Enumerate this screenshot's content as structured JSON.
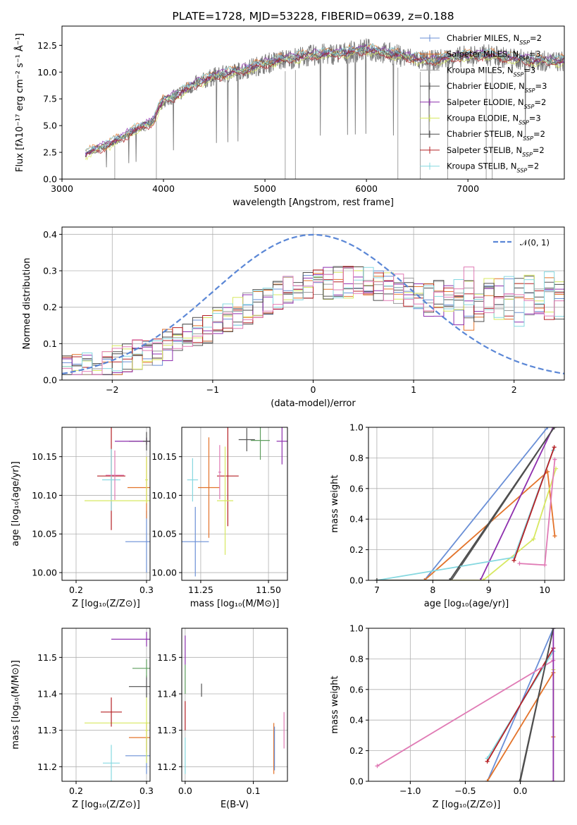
{
  "chart_data": [
    {
      "id": "spectrum",
      "type": "line",
      "title": "PLATE=1728, MJD=53228, FIBERID=0639, z=0.188",
      "xlabel": "wavelength [Angstrom, rest frame]",
      "ylabel": "Flux [fλ10⁻¹⁷ erg cm⁻² s⁻¹ Å⁻¹]",
      "xlim": [
        3000,
        7950
      ],
      "ylim": [
        0,
        14.3
      ],
      "xticks": [
        3000,
        4000,
        5000,
        6000,
        7000
      ],
      "yticks": [
        "0.0",
        "2.5",
        "5.0",
        "7.5",
        "10.0",
        "12.5"
      ],
      "grid": false,
      "legend_position": "top-right",
      "observed_anchors": {
        "x": [
          3230,
          3300,
          3400,
          3500,
          3600,
          3700,
          3800,
          3900,
          3950,
          4000,
          4100,
          4300,
          4500,
          4800,
          5000,
          5200,
          5500,
          5800,
          6000,
          6300,
          6600,
          6800,
          7000,
          7200,
          7400,
          7600,
          7800
        ],
        "y": [
          2.3,
          2.6,
          3.0,
          3.4,
          3.9,
          4.5,
          4.9,
          5.4,
          6.5,
          7.3,
          7.7,
          8.8,
          9.6,
          10.2,
          10.8,
          11.2,
          11.6,
          11.8,
          12.1,
          11.6,
          11.0,
          11.3,
          11.5,
          11.6,
          11.3,
          11.1,
          11.0
        ]
      },
      "model_offsets": [
        0.1,
        0.3,
        -0.1,
        0.0,
        0.2,
        -0.2,
        0.05,
        -0.15,
        0.25
      ],
      "series": [
        {
          "name": "Chabrier MILES, N_SSP=2",
          "base": "Chabrier MILES, N",
          "sub": "SSP",
          "tail": "=2",
          "color": "#6a8fd6",
          "marker": "|"
        },
        {
          "name": "Salpeter MILES, N_SSP=3",
          "base": "Salpeter MILES, N",
          "sub": "SSP",
          "tail": "=3",
          "color": "#e3732a",
          "marker": "|"
        },
        {
          "name": "Kroupa MILES, N_SSP=3",
          "base": "Kroupa MILES, N",
          "sub": "SSP",
          "tail": "=3",
          "color": "#9a9a9a",
          "marker": "|"
        },
        {
          "name": "Chabrier ELODIE, N_SSP=3",
          "base": "Chabrier ELODIE, N",
          "sub": "SSP",
          "tail": "=3",
          "color": "#555555",
          "marker": "|"
        },
        {
          "name": "Salpeter ELODIE, N_SSP=2",
          "base": "Salpeter ELODIE, N",
          "sub": "SSP",
          "tail": "=2",
          "color": "#8e2fae",
          "marker": "|"
        },
        {
          "name": "Kroupa ELODIE, N_SSP=3",
          "base": "Kroupa ELODIE, N",
          "sub": "SSP",
          "tail": "=3",
          "color": "#d7e861",
          "marker": "|"
        },
        {
          "name": "Chabrier STELIB, N_SSP=2",
          "base": "Chabrier STELIB, N",
          "sub": "SSP",
          "tail": "=2",
          "color": "#4d4d4d",
          "marker": "|"
        },
        {
          "name": "Salpeter STELIB, N_SSP=2",
          "base": "Salpeter STELIB, N",
          "sub": "SSP",
          "tail": "=2",
          "color": "#b52025",
          "marker": "|"
        },
        {
          "name": "Kroupa STELIB, N_SSP=2",
          "base": "Kroupa STELIB, N",
          "sub": "SSP",
          "tail": "=2",
          "color": "#86d8e0",
          "marker": "|"
        }
      ]
    },
    {
      "id": "residuals",
      "type": "line",
      "xlabel": "(data-model)/error",
      "ylabel": "Normed distribution",
      "xlim": [
        -2.5,
        2.5
      ],
      "ylim": [
        0,
        0.42
      ],
      "xticks": [
        "−2",
        "−1",
        "0",
        "1",
        "2"
      ],
      "xtick_values": [
        -2,
        -1,
        0,
        1,
        2
      ],
      "yticks": [
        "0.0",
        "0.1",
        "0.2",
        "0.3",
        "0.4"
      ],
      "ytick_values": [
        0,
        0.1,
        0.2,
        0.3,
        0.4
      ],
      "grid": true,
      "reference_label": "𝒩(0, 1)",
      "reference_color": "#5b87d6",
      "bin_width": 0.1,
      "series_colors": [
        "#6a8fd6",
        "#e3732a",
        "#9a9a9a",
        "#555555",
        "#8e2fae",
        "#d7e861",
        "#4d4d4d",
        "#b52025",
        "#86d8e0",
        "#e07bb5"
      ]
    },
    {
      "id": "age-Z",
      "type": "scatter",
      "xlabel": "Z [log₁₀(Z/Z⊙)]",
      "ylabel": "age  [log₁₀(age/yr)]",
      "xlim": [
        0.18,
        0.305
      ],
      "ylim": [
        9.99,
        10.188
      ],
      "xticks": [
        "0.2",
        "0.3"
      ],
      "xtick_values": [
        0.2,
        0.3
      ],
      "yticks": [
        "10.00",
        "10.05",
        "10.10",
        "10.15"
      ],
      "ytick_values": [
        10.0,
        10.05,
        10.1,
        10.15
      ],
      "points": [
        {
          "x": 0.3,
          "y": 10.04,
          "ex": 0.03,
          "ey": 0.04,
          "color": "#6a8fd6"
        },
        {
          "x": 0.3,
          "y": 10.11,
          "ex": 0.027,
          "ey": 0.04,
          "color": "#e3732a"
        },
        {
          "x": 0.3,
          "y": 10.17,
          "ex": 0.025,
          "ey": 0.005,
          "color": "#555555"
        },
        {
          "x": 0.3,
          "y": 10.17,
          "ex": 0.045,
          "ey": 0.004,
          "color": "#8e2fae"
        },
        {
          "x": 0.3,
          "y": 10.17,
          "ex": 0.005,
          "ey": 0.012,
          "color": "#4d4d4d"
        },
        {
          "x": 0.3,
          "y": 10.12,
          "ex": 0.002,
          "ey": 0.03,
          "color": "#d7e861"
        },
        {
          "x": 0.25,
          "y": 10.125,
          "ex": 0.02,
          "ey": 0.07,
          "color": "#b52025"
        },
        {
          "x": 0.25,
          "y": 10.12,
          "ex": 0.013,
          "ey": 0.04,
          "color": "#86d8e0"
        },
        {
          "x": 0.255,
          "y": 10.126,
          "ex": 0.013,
          "ey": 0.032,
          "color": "#e07bb5"
        },
        {
          "x": 0.3,
          "y": 10.093,
          "ex": 0.088,
          "ey": 0.003,
          "color": "#d7e861"
        }
      ]
    },
    {
      "id": "age-mass",
      "type": "scatter",
      "xlabel": "mass [log₁₀(M/M⊙)]",
      "ylabel": "",
      "xlim": [
        11.18,
        11.57
      ],
      "ylim": [
        9.99,
        10.188
      ],
      "xticks": [
        "11.25",
        "11.50"
      ],
      "xtick_values": [
        11.25,
        11.5
      ],
      "yticks": [
        "10.00",
        "10.05",
        "10.10",
        "10.15"
      ],
      "ytick_values": [
        10.0,
        10.05,
        10.1,
        10.15
      ],
      "points": [
        {
          "x": 11.23,
          "y": 10.04,
          "ex": 0.05,
          "ey": 0.045,
          "color": "#6a8fd6"
        },
        {
          "x": 11.28,
          "y": 10.11,
          "ex": 0.04,
          "ey": 0.065,
          "color": "#e3732a"
        },
        {
          "x": 11.22,
          "y": 10.12,
          "ex": 0.02,
          "ey": 0.028,
          "color": "#86d8e0"
        },
        {
          "x": 11.35,
          "y": 10.125,
          "ex": 0.04,
          "ey": 0.065,
          "color": "#b52025"
        },
        {
          "x": 11.32,
          "y": 10.13,
          "ex": 0.005,
          "ey": 0.035,
          "color": "#e07bb5"
        },
        {
          "x": 11.34,
          "y": 10.093,
          "ex": 0.03,
          "ey": 0.07,
          "color": "#d7e861"
        },
        {
          "x": 11.42,
          "y": 10.172,
          "ex": 0.03,
          "ey": 0.015,
          "color": "#555555"
        },
        {
          "x": 11.47,
          "y": 10.171,
          "ex": 0.035,
          "ey": 0.025,
          "color": "#5e9e5e"
        },
        {
          "x": 11.55,
          "y": 10.17,
          "ex": 0.02,
          "ey": 0.03,
          "color": "#8e2fae"
        }
      ]
    },
    {
      "id": "weight-age",
      "type": "line",
      "xlabel": "age  [log₁₀(age/yr)]",
      "ylabel": "mass weight",
      "xlim": [
        6.85,
        10.35
      ],
      "ylim": [
        0,
        1
      ],
      "xticks": [
        "7",
        "8",
        "9",
        "10"
      ],
      "xtick_values": [
        7,
        8,
        9,
        10
      ],
      "yticks": [
        "0.0",
        "0.2",
        "0.4",
        "0.6",
        "0.8",
        "1.0"
      ],
      "ytick_values": [
        0,
        0.2,
        0.4,
        0.6,
        0.8,
        1.0
      ],
      "series": [
        {
          "color": "#6a8fd6",
          "x": [
            7.0,
            7.85,
            10.05
          ],
          "y": [
            0,
            0,
            1.0
          ]
        },
        {
          "color": "#e3732a",
          "x": [
            7.0,
            7.85,
            10.05,
            10.18
          ],
          "y": [
            0,
            0,
            0.71,
            0.29
          ]
        },
        {
          "color": "#555555",
          "x": [
            7.0,
            8.33,
            10.17
          ],
          "y": [
            0,
            0,
            1.0
          ]
        },
        {
          "color": "#8e2fae",
          "x": [
            7.0,
            8.85,
            10.15
          ],
          "y": [
            0,
            0,
            1.0
          ]
        },
        {
          "color": "#d7e861",
          "x": [
            7.0,
            8.9,
            9.8,
            10.2
          ],
          "y": [
            0,
            0,
            0.27,
            0.73
          ]
        },
        {
          "color": "#86d8e0",
          "x": [
            7.0,
            9.45,
            10.15
          ],
          "y": [
            0,
            0.15,
            0.85
          ]
        },
        {
          "color": "#b52025",
          "x": [
            9.45,
            10.17
          ],
          "y": [
            0.13,
            0.87
          ]
        },
        {
          "color": "#e07bb5",
          "x": [
            9.55,
            10.0,
            10.18
          ],
          "y": [
            0.11,
            0.1,
            0.79
          ]
        },
        {
          "color": "#4d4d4d",
          "x": [
            7.0,
            8.3,
            10.17
          ],
          "y": [
            0,
            0,
            1.0
          ]
        }
      ]
    },
    {
      "id": "mass-Z",
      "type": "scatter",
      "xlabel": "Z [log₁₀(Z/Z⊙)]",
      "ylabel": "mass [log₁₀(M/M⊙)]",
      "xlim": [
        0.18,
        0.305
      ],
      "ylim": [
        11.16,
        11.58
      ],
      "xticks": [
        "0.2",
        "0.3"
      ],
      "xtick_values": [
        0.2,
        0.3
      ],
      "yticks": [
        "11.2",
        "11.3",
        "11.4",
        "11.5"
      ],
      "ytick_values": [
        11.2,
        11.3,
        11.4,
        11.5
      ],
      "points": [
        {
          "x": 0.3,
          "y": 11.23,
          "ex": 0.03,
          "ey": 0.05,
          "color": "#6a8fd6"
        },
        {
          "x": 0.3,
          "y": 11.28,
          "ex": 0.025,
          "ey": 0.04,
          "color": "#e3732a"
        },
        {
          "x": 0.3,
          "y": 11.32,
          "ex": 0.088,
          "ey": 0.003,
          "color": "#d7e861"
        },
        {
          "x": 0.3,
          "y": 11.42,
          "ex": 0.025,
          "ey": 0.03,
          "color": "#4d4d4d"
        },
        {
          "x": 0.3,
          "y": 11.47,
          "ex": 0.02,
          "ey": 0.025,
          "color": "#5e9e5e"
        },
        {
          "x": 0.3,
          "y": 11.55,
          "ex": 0.05,
          "ey": 0.02,
          "color": "#8e2fae"
        },
        {
          "x": 0.25,
          "y": 11.35,
          "ex": 0.015,
          "ey": 0.04,
          "color": "#b52025"
        },
        {
          "x": 0.25,
          "y": 11.21,
          "ex": 0.012,
          "ey": 0.05,
          "color": "#86d8e0"
        },
        {
          "x": 0.3,
          "y": 11.3,
          "ex": 0.002,
          "ey": 0.09,
          "color": "#d7e861"
        }
      ]
    },
    {
      "id": "mass-EBV",
      "type": "scatter",
      "xlabel": "E(B-V)",
      "ylabel": "",
      "xlim": [
        -0.005,
        0.15
      ],
      "ylim": [
        11.16,
        11.58
      ],
      "xticks": [
        "0.0",
        "0.1"
      ],
      "xtick_values": [
        0.0,
        0.1
      ],
      "yticks": [
        "11.2",
        "11.3",
        "11.4",
        "11.5"
      ],
      "ytick_values": [
        11.2,
        11.3,
        11.4,
        11.5
      ],
      "points": [
        {
          "x": 0.0,
          "y": 11.52,
          "ex": 0.0,
          "ey": 0.04,
          "color": "#8e2fae"
        },
        {
          "x": 0.0,
          "y": 11.44,
          "ex": 0.0,
          "ey": 0.04,
          "color": "#5e9e5e"
        },
        {
          "x": 0.0,
          "y": 11.34,
          "ex": 0.0,
          "ey": 0.04,
          "color": "#b52025"
        },
        {
          "x": 0.0,
          "y": 11.23,
          "ex": 0.0,
          "ey": 0.05,
          "color": "#86d8e0"
        },
        {
          "x": 0.024,
          "y": 11.41,
          "ex": 0.0,
          "ey": 0.018,
          "color": "#555555"
        },
        {
          "x": 0.13,
          "y": 11.25,
          "ex": 0.0,
          "ey": 0.07,
          "color": "#e3732a"
        },
        {
          "x": 0.131,
          "y": 11.25,
          "ex": 0.0,
          "ey": 0.06,
          "color": "#6a8fd6"
        },
        {
          "x": 0.145,
          "y": 11.3,
          "ex": 0.0,
          "ey": 0.05,
          "color": "#e07bb5"
        }
      ]
    },
    {
      "id": "weight-Z",
      "type": "line",
      "xlabel": "Z [log₁₀(Z/Z⊙)]",
      "ylabel": "mass weight",
      "xlim": [
        -1.38,
        0.4
      ],
      "ylim": [
        0,
        1
      ],
      "xticks": [
        "−1.0",
        "−0.5",
        "0.0"
      ],
      "xtick_values": [
        -1.0,
        -0.5,
        0.0
      ],
      "yticks": [
        "0.0",
        "0.2",
        "0.4",
        "0.6",
        "0.8",
        "1.0"
      ],
      "ytick_values": [
        0,
        0.2,
        0.4,
        0.6,
        0.8,
        1.0
      ],
      "series": [
        {
          "color": "#6a8fd6",
          "x": [
            -0.3,
            0.3
          ],
          "y": [
            0,
            1.0
          ]
        },
        {
          "color": "#e3732a",
          "x": [
            -0.3,
            0.3,
            0.3
          ],
          "y": [
            0,
            0.71,
            0.29
          ]
        },
        {
          "color": "#555555",
          "x": [
            0.0,
            0.3
          ],
          "y": [
            0,
            1.0
          ]
        },
        {
          "color": "#86d8e0",
          "x": [
            -0.3,
            0.3
          ],
          "y": [
            0.15,
            0.85
          ]
        },
        {
          "color": "#b52025",
          "x": [
            -0.3,
            0.3
          ],
          "y": [
            0.13,
            0.87
          ]
        },
        {
          "color": "#e07bb5",
          "x": [
            -1.3,
            0.3
          ],
          "y": [
            0.1,
            0.79
          ]
        },
        {
          "color": "#d7e861",
          "x": [
            0.3,
            0.3
          ],
          "y": [
            0.0,
            0.73
          ]
        },
        {
          "color": "#8e2fae",
          "x": [
            0.3,
            0.3
          ],
          "y": [
            0.0,
            1.0
          ]
        },
        {
          "color": "#4d4d4d",
          "x": [
            -0.005,
            0.3
          ],
          "y": [
            0,
            1.0
          ]
        }
      ]
    }
  ]
}
